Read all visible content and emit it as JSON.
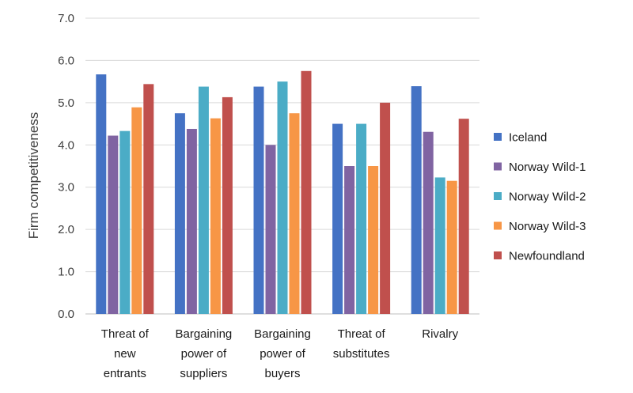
{
  "chart_data": {
    "type": "bar",
    "title": "",
    "xlabel": "",
    "ylabel": "Firm competitiveness",
    "ylim": [
      0,
      7
    ],
    "yticks": [
      "0.0",
      "1.0",
      "2.0",
      "3.0",
      "4.0",
      "5.0",
      "6.0",
      "7.0"
    ],
    "grid": true,
    "legend_position": "right",
    "categories": [
      [
        "Threat of",
        "new",
        "entrants"
      ],
      [
        "Bargaining",
        "power of",
        "suppliers"
      ],
      [
        "Bargaining",
        "power of",
        "buyers"
      ],
      [
        "Threat of",
        "substitutes"
      ],
      [
        "Rivalry"
      ]
    ],
    "series": [
      {
        "name": "Iceland",
        "color": "#4472c4",
        "values": [
          5.67,
          4.75,
          5.38,
          4.5,
          5.39
        ]
      },
      {
        "name": "Norway Wild-1",
        "color": "#8064a2",
        "values": [
          4.22,
          4.38,
          4.0,
          3.5,
          4.31
        ]
      },
      {
        "name": "Norway Wild-2",
        "color": "#4bacc6",
        "values": [
          4.33,
          5.38,
          5.5,
          4.5,
          3.23
        ]
      },
      {
        "name": "Norway Wild-3",
        "color": "#f79646",
        "values": [
          4.89,
          4.63,
          4.75,
          3.5,
          3.15
        ]
      },
      {
        "name": "Newfoundland",
        "color": "#c0504d",
        "values": [
          5.44,
          5.13,
          5.75,
          5.0,
          4.62
        ]
      }
    ]
  }
}
